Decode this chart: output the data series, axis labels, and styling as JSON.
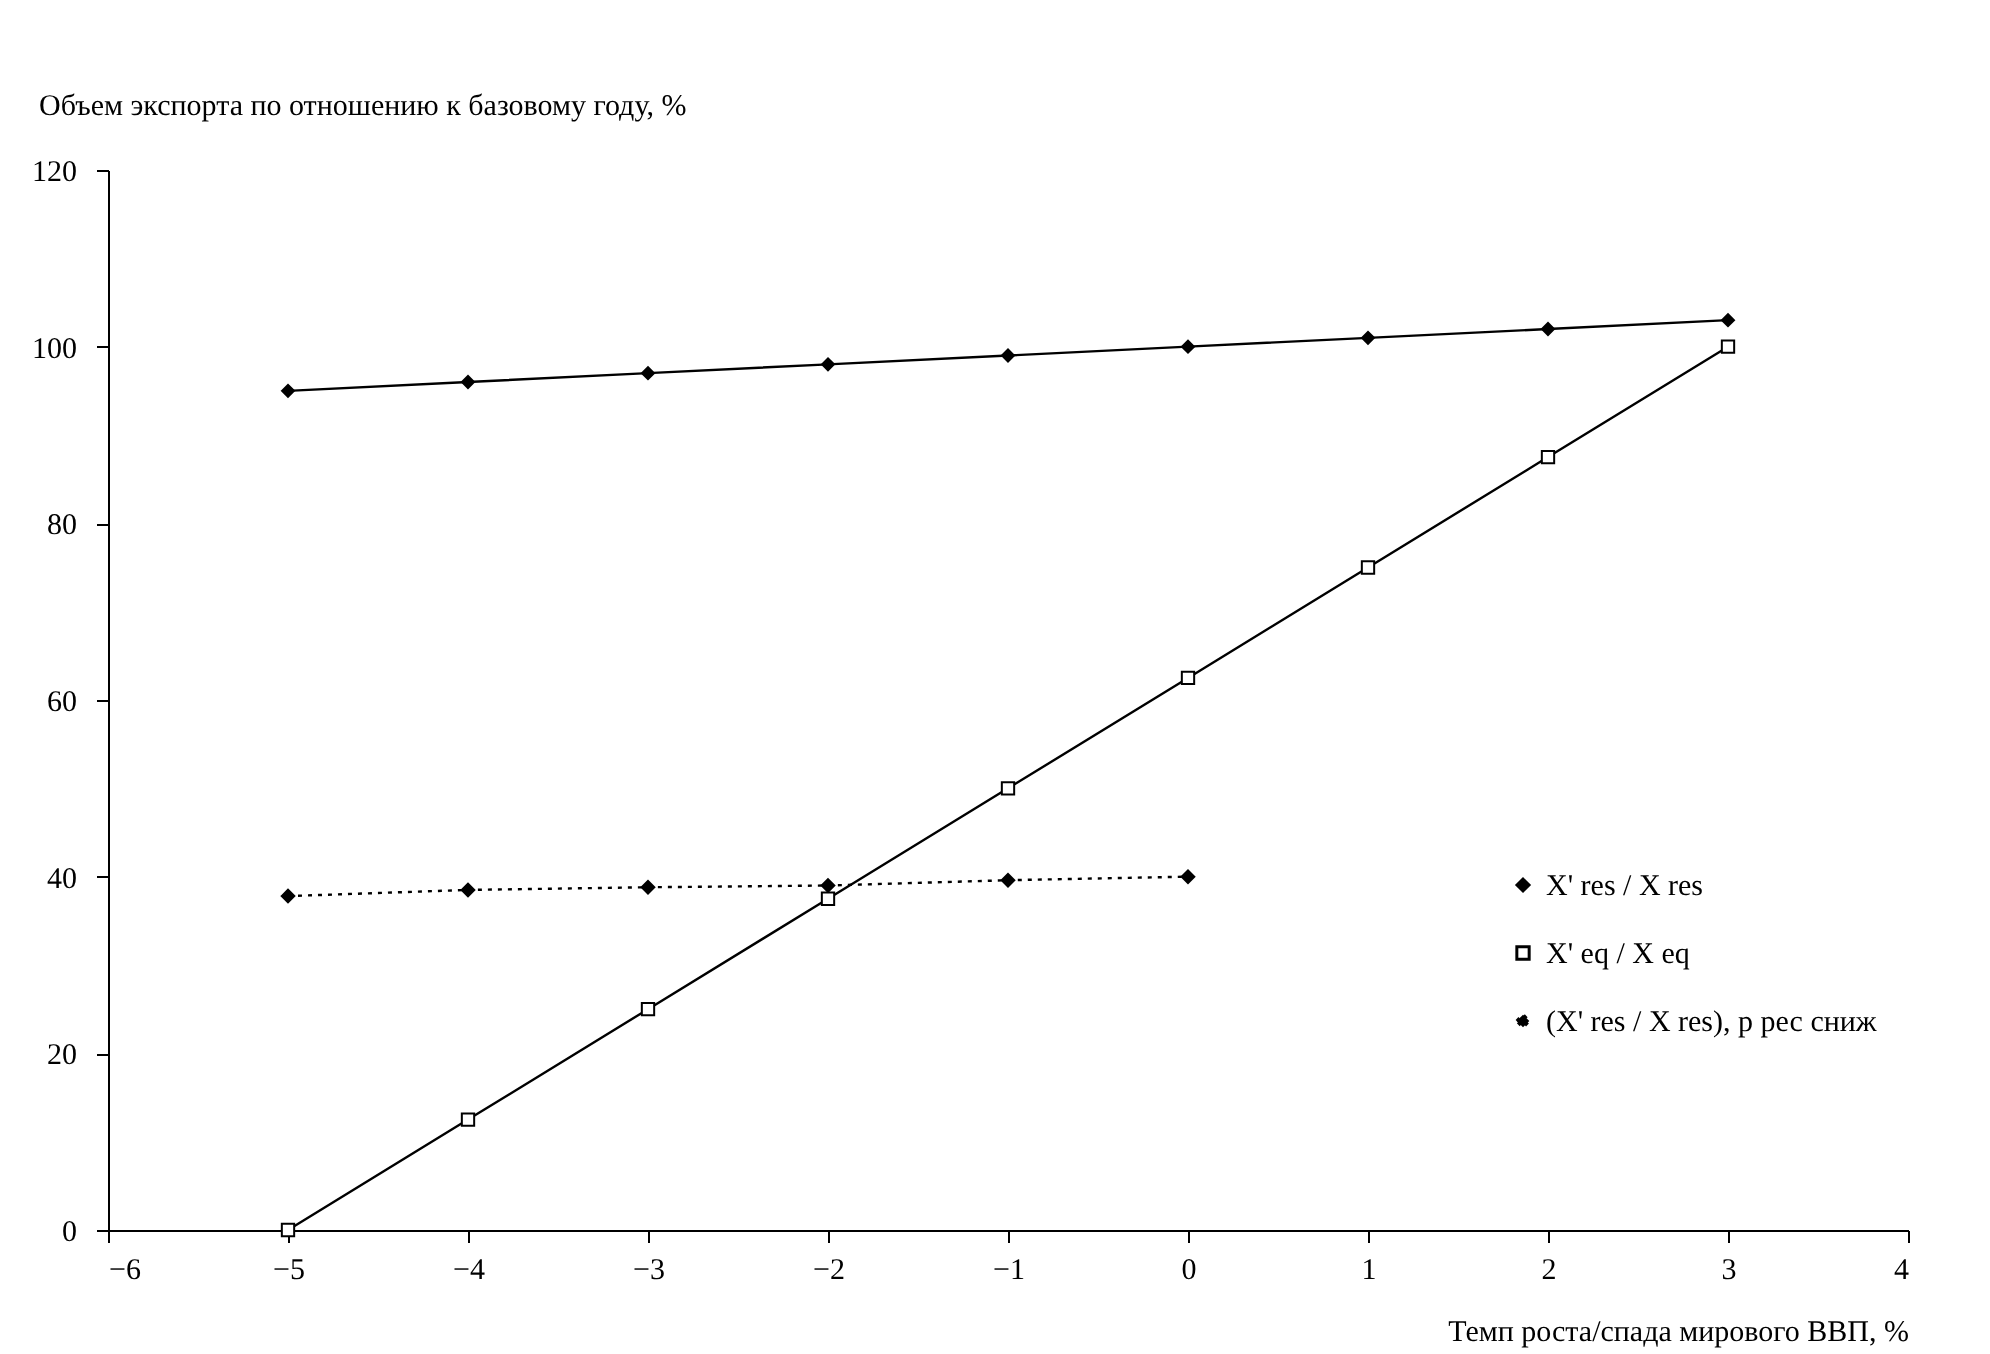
{
  "chart_data": {
    "type": "line",
    "ylabel": "Объем экспорта по отношению к базовому году, %",
    "xlabel": "Темп роста/спада мирового ВВП, %",
    "xlim": [
      -6,
      4
    ],
    "xticks": [
      -6,
      -5,
      -4,
      -3,
      -2,
      -1,
      0,
      1,
      2,
      3,
      4
    ],
    "ylim": [
      0,
      120
    ],
    "yticks": [
      0,
      20,
      40,
      60,
      80,
      100,
      120
    ],
    "grid": false,
    "legend": "right",
    "series": [
      {
        "name": "X' res / X res",
        "color": "#000000",
        "marker": "diamond",
        "line_style": "solid",
        "x": [
          -5,
          -4,
          -3,
          -2,
          -1,
          0,
          1,
          2,
          3
        ],
        "values": [
          95,
          96,
          97,
          98,
          99,
          100,
          101,
          102,
          103
        ]
      },
      {
        "name": "X' eq / X eq",
        "color": "#000000",
        "marker": "square",
        "line_style": "solid",
        "x": [
          -5,
          -4,
          -3,
          -2,
          -1,
          0,
          1,
          2,
          3
        ],
        "values": [
          0,
          12.5,
          25,
          37.5,
          50,
          62.5,
          75,
          87.5,
          100
        ]
      },
      {
        "name": "(X' res / X res), p рес сниж",
        "color": "#000000",
        "marker": "diamond",
        "line_style": "dotted",
        "x": [
          -5,
          -4,
          -3,
          -2,
          -1,
          0
        ],
        "values": [
          37.8,
          38.5,
          38.8,
          39.0,
          39.6,
          40.0
        ]
      }
    ]
  }
}
